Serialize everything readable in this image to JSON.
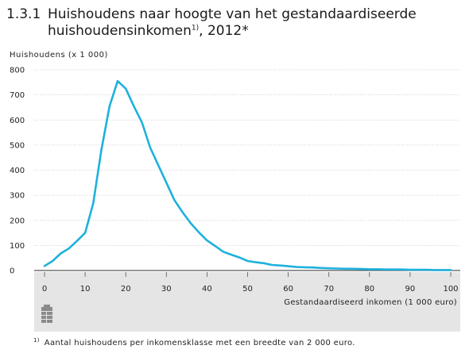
{
  "title": {
    "number": "1.3.1",
    "line1": "Huishoudens naar hoogte van het gestandaardiseerde",
    "line2_main": "huishoudensinkomen",
    "line2_sup": "1)",
    "line2_tail": ", 2012*"
  },
  "footnote": {
    "marker": "1)",
    "text": "Aantal huishoudens per inkomensklasse met een breedte van 2 000 euro."
  },
  "colors": {
    "line": "#1eb1dc",
    "axis_band": "#e5e5e5",
    "grid": "#cccccc"
  },
  "icon": "table-icon",
  "chart_data": {
    "type": "line",
    "ylabel": "Huishoudens (x 1 000)",
    "xlabel": "Gestandaardiseerd inkomen (1 000 euro)",
    "xlim": [
      0,
      100
    ],
    "ylim": [
      0,
      800
    ],
    "x_ticks": [
      0,
      10,
      20,
      30,
      40,
      50,
      60,
      70,
      80,
      90,
      100
    ],
    "y_ticks": [
      0,
      100,
      200,
      300,
      400,
      500,
      600,
      700,
      800
    ],
    "grid": "horizontal",
    "series": [
      {
        "x": [
          0,
          2,
          4,
          6,
          8,
          10,
          12,
          14,
          16,
          18,
          20,
          22,
          24,
          26,
          28,
          30,
          32,
          34,
          36,
          38,
          40,
          42,
          44,
          46,
          48,
          50,
          52,
          54,
          56,
          58,
          60,
          62,
          64,
          66,
          68,
          70,
          72,
          74,
          76,
          78,
          80,
          82,
          84,
          86,
          88,
          90,
          92,
          94,
          96,
          98,
          100
        ],
        "y": [
          18,
          38,
          68,
          88,
          118,
          150,
          268,
          480,
          655,
          755,
          725,
          655,
          590,
          490,
          420,
          350,
          280,
          232,
          188,
          152,
          120,
          98,
          75,
          63,
          52,
          38,
          33,
          29,
          22,
          20,
          17,
          14,
          13,
          12,
          10,
          9,
          8,
          7,
          7,
          6,
          5,
          5,
          4,
          4,
          4,
          3,
          3,
          3,
          2,
          2,
          2
        ]
      }
    ]
  }
}
